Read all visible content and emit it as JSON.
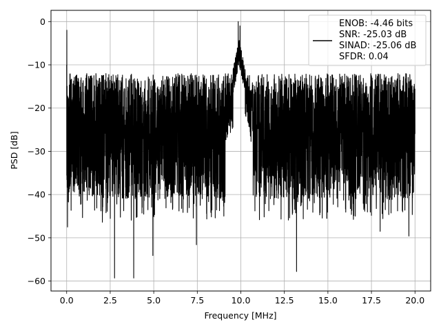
{
  "chart_data": {
    "type": "line",
    "xlabel": "Frequency [MHz]",
    "ylabel": "PSD [dB]",
    "xlim": [
      -0.9,
      20.9
    ],
    "ylim": [
      -62.3,
      2.6
    ],
    "xticks": [
      0.0,
      2.5,
      5.0,
      7.5,
      10.0,
      12.5,
      15.0,
      17.5,
      20.0
    ],
    "xtick_labels": [
      "0.0",
      "2.5",
      "5.0",
      "7.5",
      "10.0",
      "12.5",
      "15.0",
      "17.5",
      "20.0"
    ],
    "yticks": [
      0,
      -10,
      -20,
      -30,
      -40,
      -50,
      -60
    ],
    "ytick_labels": [
      "0",
      "−10",
      "−20",
      "−30",
      "−40",
      "−50",
      "−60"
    ],
    "grid": true,
    "legend_position": "top-right",
    "series": [
      {
        "color": "#000000",
        "description": "Noise-like PSD trace, floor ~-20 to -40 dB, peak near 0 dB at 10 MHz",
        "x_range": [
          0,
          20
        ],
        "floor_level": -25,
        "peak_x": 9.9,
        "peak_y": 0,
        "spike_x": 0.0,
        "spike_y": -2,
        "dips": [
          {
            "x": 2.75,
            "y": -59.3
          },
          {
            "x": 3.85,
            "y": -59.3
          },
          {
            "x": 13.2,
            "y": -57.8
          },
          {
            "x": 4.95,
            "y": -54.1
          },
          {
            "x": 7.45,
            "y": -51.6
          },
          {
            "x": 0.05,
            "y": -47.5
          },
          {
            "x": 2.05,
            "y": -46.4
          },
          {
            "x": 18.0,
            "y": -48.5
          },
          {
            "x": 19.65,
            "y": -49.6
          }
        ]
      }
    ],
    "legend_lines": [
      "ENOB: -4.46 bits",
      "SNR: -25.03 dB",
      "SINAD: -25.06 dB",
      "SFDR: 0.04"
    ]
  }
}
